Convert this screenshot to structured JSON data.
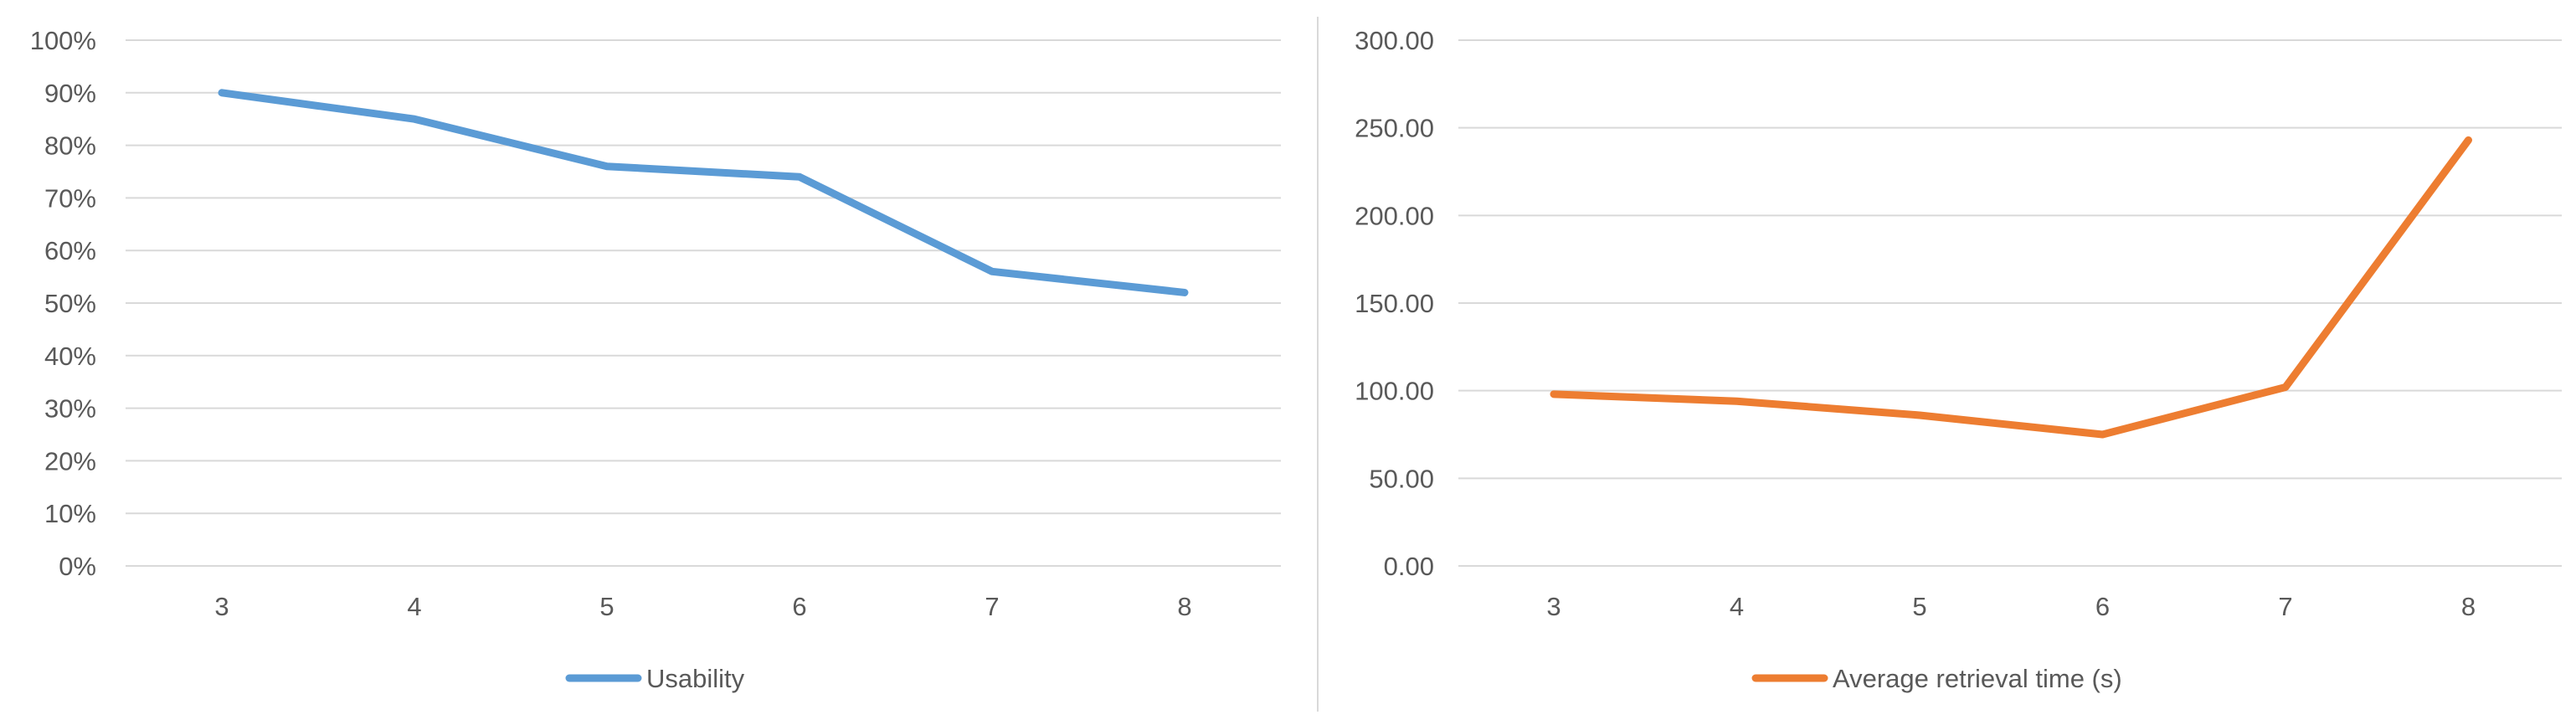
{
  "chart_data": [
    {
      "type": "line",
      "title": "",
      "xlabel": "",
      "ylabel": "",
      "categories": [
        "3",
        "4",
        "5",
        "6",
        "7",
        "8"
      ],
      "ylim": [
        0,
        100
      ],
      "yticks": [
        "0%",
        "10%",
        "20%",
        "30%",
        "40%",
        "50%",
        "60%",
        "70%",
        "80%",
        "90%",
        "100%"
      ],
      "grid": true,
      "legend": "bottom",
      "series": [
        {
          "name": "Usability",
          "values": [
            90,
            85,
            76,
            74,
            56,
            52
          ],
          "color": "#5b9bd5"
        }
      ]
    },
    {
      "type": "line",
      "title": "",
      "xlabel": "",
      "ylabel": "",
      "categories": [
        "3",
        "4",
        "5",
        "6",
        "7",
        "8"
      ],
      "ylim": [
        0,
        300
      ],
      "yticks": [
        "0.00",
        "50.00",
        "100.00",
        "150.00",
        "200.00",
        "250.00",
        "300.00"
      ],
      "grid": true,
      "legend": "bottom",
      "series": [
        {
          "name": "Average retrieval time (s)",
          "values": [
            98,
            94,
            86,
            75,
            102,
            243
          ],
          "color": "#ed7d31"
        }
      ]
    }
  ]
}
